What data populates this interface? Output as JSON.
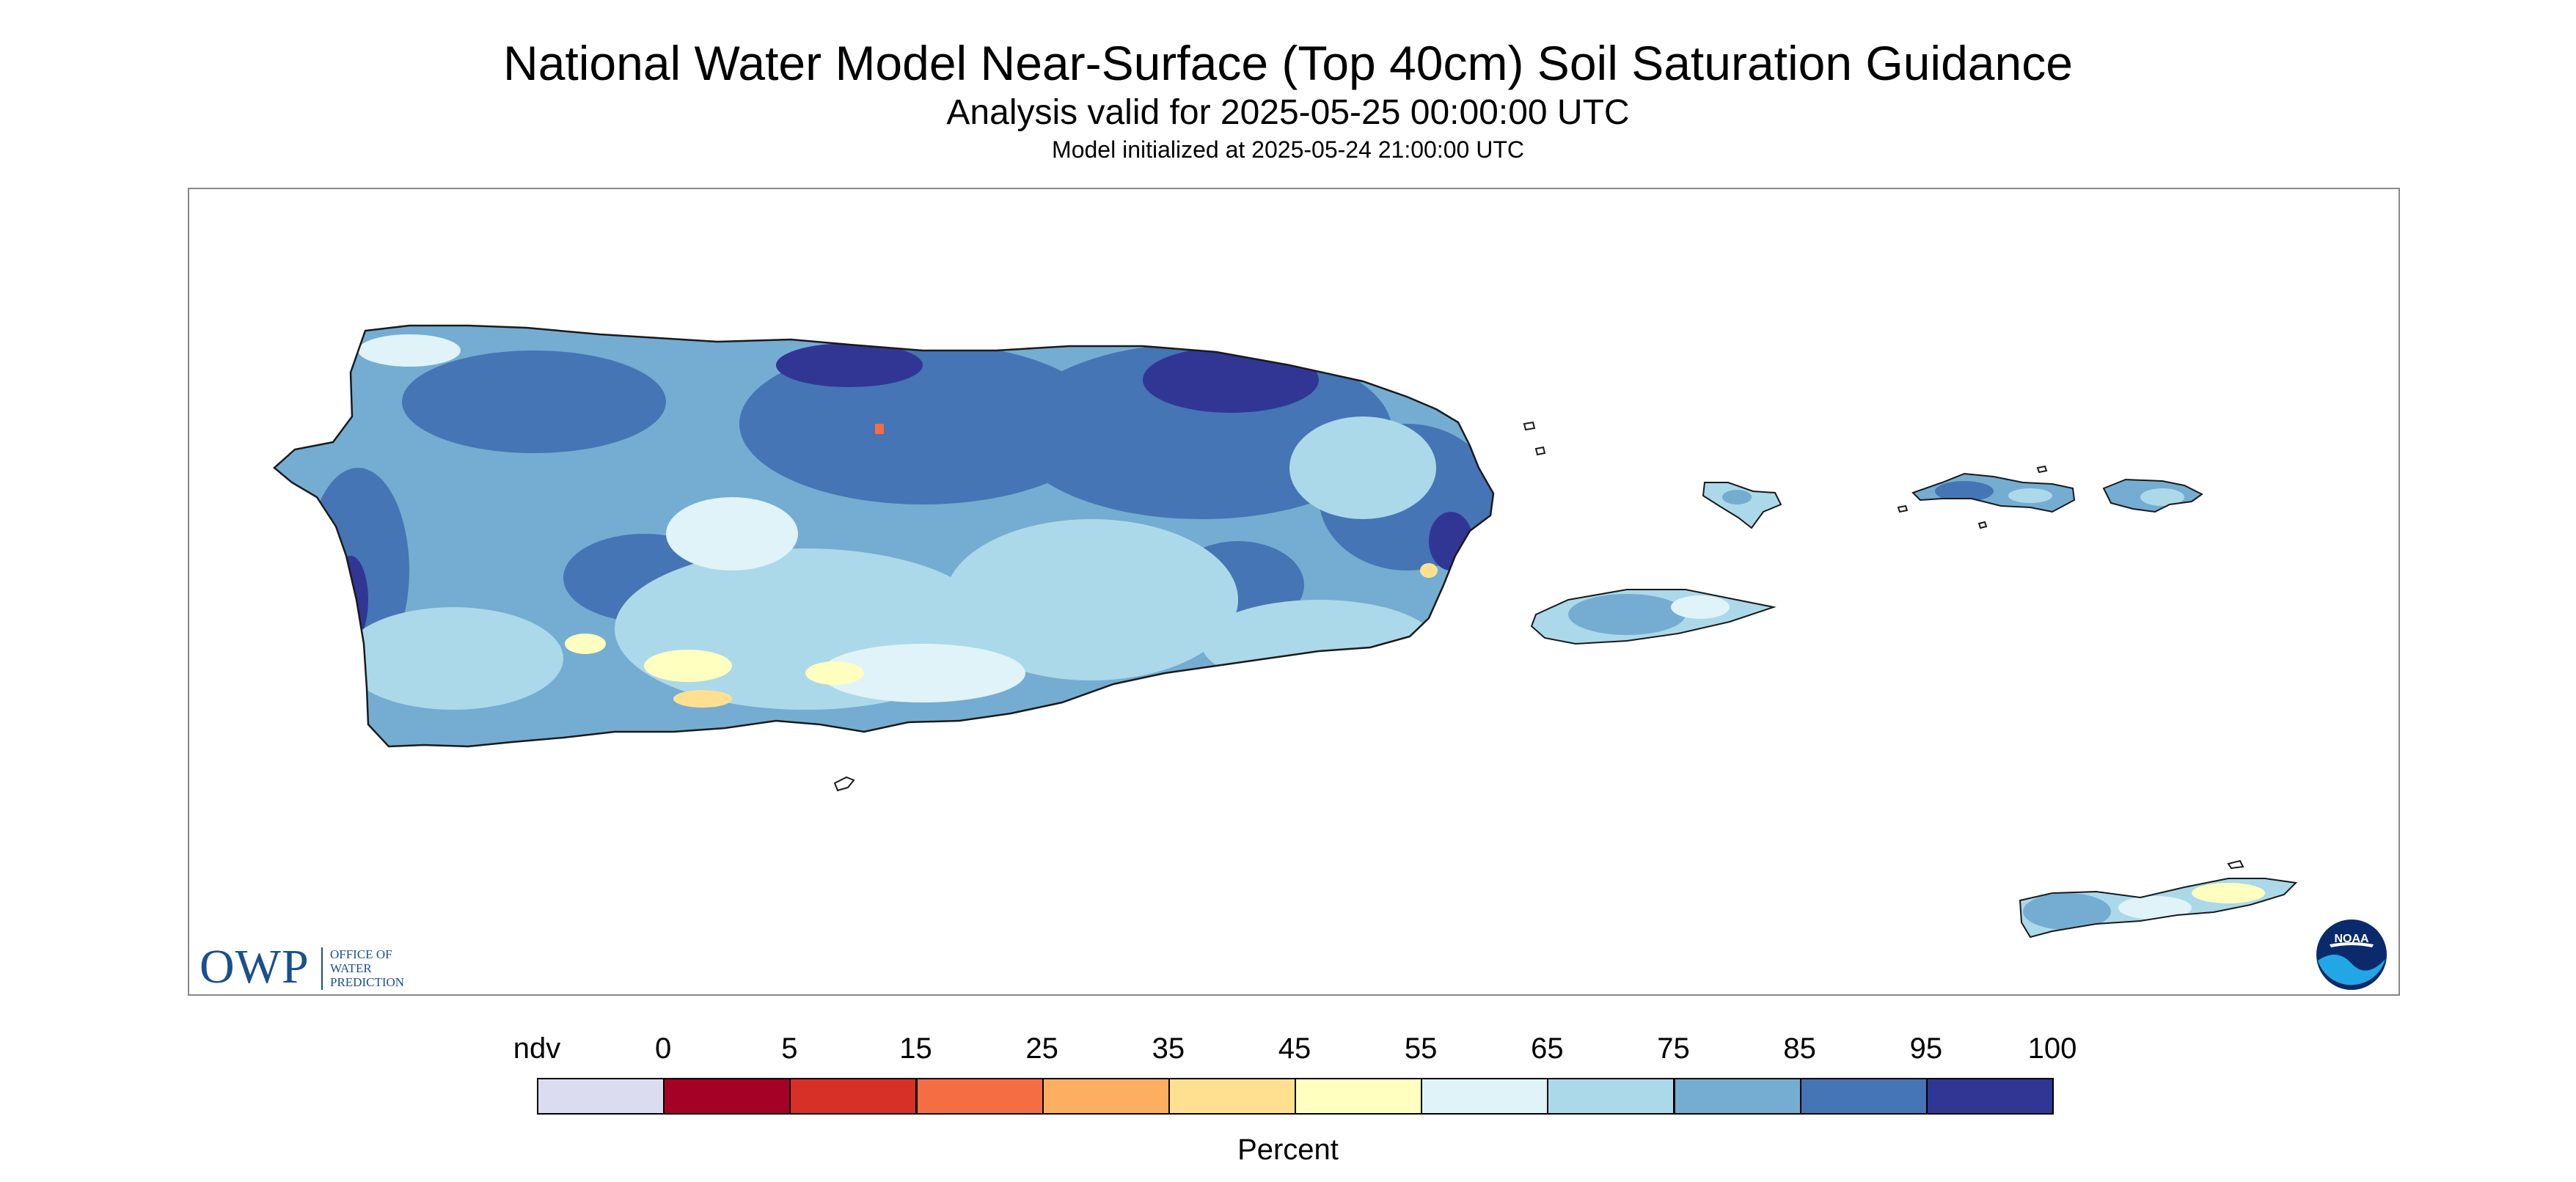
{
  "title": "National Water Model Near-Surface (Top 40cm) Soil Saturation Guidance",
  "subtitle": "Analysis valid for 2025-05-25 00:00:00 UTC",
  "init_line": "Model initialized at 2025-05-24 21:00:00 UTC",
  "logos": {
    "owp_letters": "OWP",
    "owp_sub_lines": [
      "OFFICE OF",
      "WATER",
      "PREDICTION"
    ],
    "noaa": "NOAA"
  },
  "legend": {
    "title": "Percent",
    "labels": [
      "ndv",
      "0",
      "5",
      "15",
      "25",
      "35",
      "45",
      "55",
      "65",
      "75",
      "85",
      "95",
      "100"
    ],
    "colors": [
      "#dcdcf0",
      "#a50026",
      "#d73027",
      "#f46d43",
      "#fdae61",
      "#fee090",
      "#ffffbf",
      "#e0f3f8",
      "#abd9e9",
      "#74add1",
      "#4575b4",
      "#313695"
    ]
  },
  "colors": {
    "land_base": "#74add1",
    "wet": "#4575b4",
    "very_wet": "#313695",
    "moist": "#abd9e9",
    "light": "#e0f3f8",
    "dry": "#ffffbf",
    "drier": "#fee090",
    "driest": "#f46d43",
    "coast": "#1a1a1a",
    "owp_blue": "#1a4f8f"
  },
  "map": {
    "region": "Puerto Rico and U.S. Virgin Islands",
    "variable": "Soil saturation (percent)"
  }
}
